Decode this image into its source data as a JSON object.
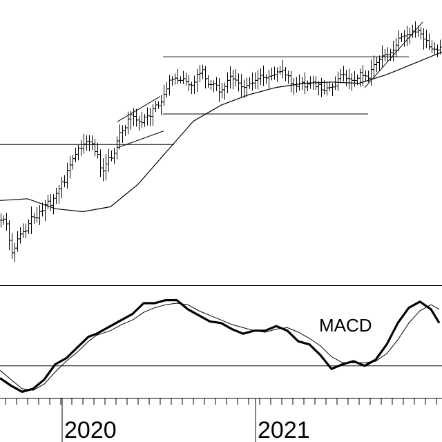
{
  "chart_data": [
    {
      "type": "ohlc",
      "panel": "price",
      "title": "",
      "xlabel": "",
      "ylabel": "",
      "ylim": [
        0,
        100
      ],
      "grid": false,
      "colors": {
        "bars": "#000000",
        "moving_average": "#000000",
        "trendlines": "#000000"
      },
      "series": [
        {
          "type": "ohlc",
          "x": [
            0,
            4,
            8,
            12,
            16,
            20,
            24,
            28,
            32,
            36,
            40,
            44,
            48,
            52,
            56,
            60,
            64,
            68,
            72,
            76,
            80,
            84,
            88,
            92,
            96,
            100,
            104,
            108,
            112,
            116,
            120,
            124,
            128,
            132,
            136,
            140,
            144,
            148,
            152,
            156,
            160,
            164,
            168,
            172,
            176,
            180,
            184,
            188,
            192,
            196,
            200,
            204,
            208,
            212,
            216,
            220,
            224,
            228,
            232,
            236,
            240,
            244,
            248,
            252,
            256,
            260,
            264,
            268,
            272,
            276,
            280,
            284,
            288,
            292,
            296,
            300,
            304,
            308,
            312,
            316,
            320,
            324,
            328,
            332,
            336,
            340,
            344,
            348,
            352,
            356,
            360,
            364,
            368,
            372,
            376,
            380,
            384,
            388,
            392,
            396,
            400,
            404,
            408,
            412,
            416,
            420,
            424,
            428,
            432,
            436,
            440,
            444,
            448,
            452,
            456,
            460,
            464,
            468,
            472,
            476,
            480,
            484,
            488,
            492,
            496,
            500,
            504,
            508,
            512,
            516,
            520,
            524,
            528,
            532,
            536,
            540,
            544,
            548,
            552,
            556,
            560,
            564,
            568,
            572,
            576,
            580,
            584,
            588,
            592,
            596,
            600,
            604,
            608,
            612,
            616,
            620,
            624,
            628,
            632,
            636
          ],
          "values": [
            20.8,
            21.2,
            19.3,
            12.5,
            7.4,
            9.3,
            13.1,
            15.1,
            16.1,
            16.4,
            19.4,
            22.2,
            21.9,
            21.7,
            24.4,
            24.7,
            27.3,
            28.6,
            26.9,
            29.8,
            31.8,
            33.8,
            36.6,
            36.3,
            41.3,
            43.5,
            46.1,
            47.9,
            50.4,
            50.4,
            52.1,
            53.2,
            53.0,
            52.2,
            49.0,
            47.8,
            42.3,
            41.1,
            43.9,
            46.5,
            46.3,
            48.3,
            53.4,
            56.8,
            57.8,
            58.8,
            62.4,
            64.2,
            63.5,
            62.0,
            61.3,
            60.9,
            63.2,
            63.7,
            63.5,
            66.6,
            68.2,
            67.9,
            69.4,
            72.6,
            74.8,
            78.4,
            78.7,
            79.2,
            78.3,
            78.3,
            79.0,
            77.8,
            76.5,
            76.3,
            77.6,
            80.8,
            81.2,
            82.7,
            79.0,
            76.6,
            76.6,
            77.0,
            76.3,
            73.5,
            74.4,
            75.8,
            78.3,
            80.0,
            78.9,
            78.4,
            77.2,
            75.7,
            75.4,
            76.2,
            77.0,
            77.2,
            78.3,
            79.0,
            80.4,
            79.5,
            79.3,
            80.0,
            80.3,
            80.6,
            81.8,
            81.9,
            82.5,
            80.5,
            80.2,
            77.0,
            76.5,
            75.8,
            76.9,
            77.5,
            75.6,
            76.8,
            77.3,
            77.7,
            75.7,
            76.6,
            74.4,
            74.0,
            75.2,
            75.4,
            75.6,
            76.0,
            79.0,
            80.6,
            80.7,
            79.1,
            78.9,
            78.3,
            78.2,
            79.2,
            81.5,
            80.3,
            80.1,
            79.2,
            82.8,
            84.8,
            85.7,
            86.9,
            88.4,
            89.0,
            88.8,
            89.7,
            90.7,
            92.8,
            95.7,
            96.3,
            96.6,
            97.1,
            97.3,
            98.6,
            98.2,
            98.8,
            97.4,
            95.3,
            94.7,
            92.1,
            91.2,
            91.1,
            90.8,
            92.0
          ]
        },
        {
          "type": "line",
          "role": "moving_average",
          "x": [
            0,
            40,
            80,
            120,
            160,
            200,
            240,
            280,
            320,
            360,
            400,
            440,
            480,
            520,
            560,
            600,
            640
          ],
          "values": [
            28.9,
            29.6,
            25.5,
            24.3,
            26.3,
            35.6,
            48.6,
            61.5,
            68.1,
            72.4,
            75.4,
            77.1,
            77.6,
            77.1,
            80.7,
            85.3,
            90.0
          ]
        }
      ],
      "annotations": [
        {
          "type": "hline",
          "y": 51.9,
          "x": [
            0,
            252
          ]
        },
        {
          "type": "trendline",
          "x": [
            170,
            232
          ],
          "y": [
            61.3,
            71.7
          ]
        },
        {
          "type": "trendline",
          "x": [
            170,
            237
          ],
          "y": [
            50.6,
            57.5
          ]
        },
        {
          "type": "hline",
          "y": 88.0,
          "x": [
            236,
            592
          ]
        },
        {
          "type": "hline",
          "y": 64.5,
          "x": [
            236,
            533
          ]
        },
        {
          "type": "trendline",
          "x": [
            528,
            612
          ],
          "y": [
            75.3,
            102.3
          ]
        }
      ]
    },
    {
      "type": "line",
      "panel": "indicator",
      "title": "",
      "xlabel": "",
      "ylabel": "",
      "ylim": [
        -25,
        55
      ],
      "grid": false,
      "annotation_text": "MACD",
      "hline": 0,
      "series": [
        {
          "role": "macd",
          "x": [
            0,
            16,
            32,
            48,
            64,
            80,
            96,
            112,
            128,
            140,
            160,
            176,
            192,
            208,
            224,
            240,
            256,
            272,
            288,
            304,
            320,
            336,
            352,
            368,
            384,
            400,
            416,
            432,
            448,
            464,
            480,
            496,
            512,
            528,
            544,
            560,
            576,
            592,
            608,
            624,
            636
          ],
          "values": [
            -8,
            -13,
            -17,
            -15,
            -9,
            1,
            5,
            12,
            19,
            21,
            26,
            30,
            34,
            41,
            41,
            43,
            43,
            37,
            33,
            29,
            28,
            24,
            21,
            23,
            23,
            26,
            23,
            16,
            14,
            7,
            -2,
            1,
            3,
            0,
            4,
            14,
            28,
            38,
            42,
            37,
            28
          ]
        },
        {
          "role": "signal",
          "x": [
            0,
            16,
            32,
            48,
            64,
            80,
            96,
            112,
            128,
            140,
            160,
            176,
            192,
            208,
            224,
            240,
            256,
            272,
            288,
            304,
            320,
            336,
            352,
            368,
            384,
            400,
            416,
            432,
            448,
            464,
            480,
            496,
            512,
            528,
            544,
            560,
            576,
            592,
            608,
            624,
            636
          ],
          "values": [
            -3,
            -9,
            -15,
            -16,
            -12,
            -4,
            3,
            9,
            16,
            20,
            23,
            27,
            30,
            35,
            38,
            40,
            41,
            40,
            36,
            33,
            30,
            27,
            25,
            23,
            22,
            24,
            25,
            22,
            18,
            13,
            6,
            2,
            2,
            2,
            3,
            8,
            17,
            28,
            36,
            40,
            37
          ]
        }
      ]
    },
    {
      "type": "axis",
      "panel": "time",
      "tick_labels": [
        "2020",
        "2021"
      ],
      "ticks_x": [
        0,
        16,
        32,
        48,
        64,
        80,
        96,
        112,
        128,
        144,
        160,
        176,
        192,
        208,
        224,
        240,
        256,
        272,
        288,
        304,
        320,
        336,
        352,
        368,
        384,
        400,
        416,
        432,
        448,
        464,
        480,
        496,
        512,
        528,
        544,
        560,
        576,
        592,
        608,
        624
      ]
    }
  ]
}
